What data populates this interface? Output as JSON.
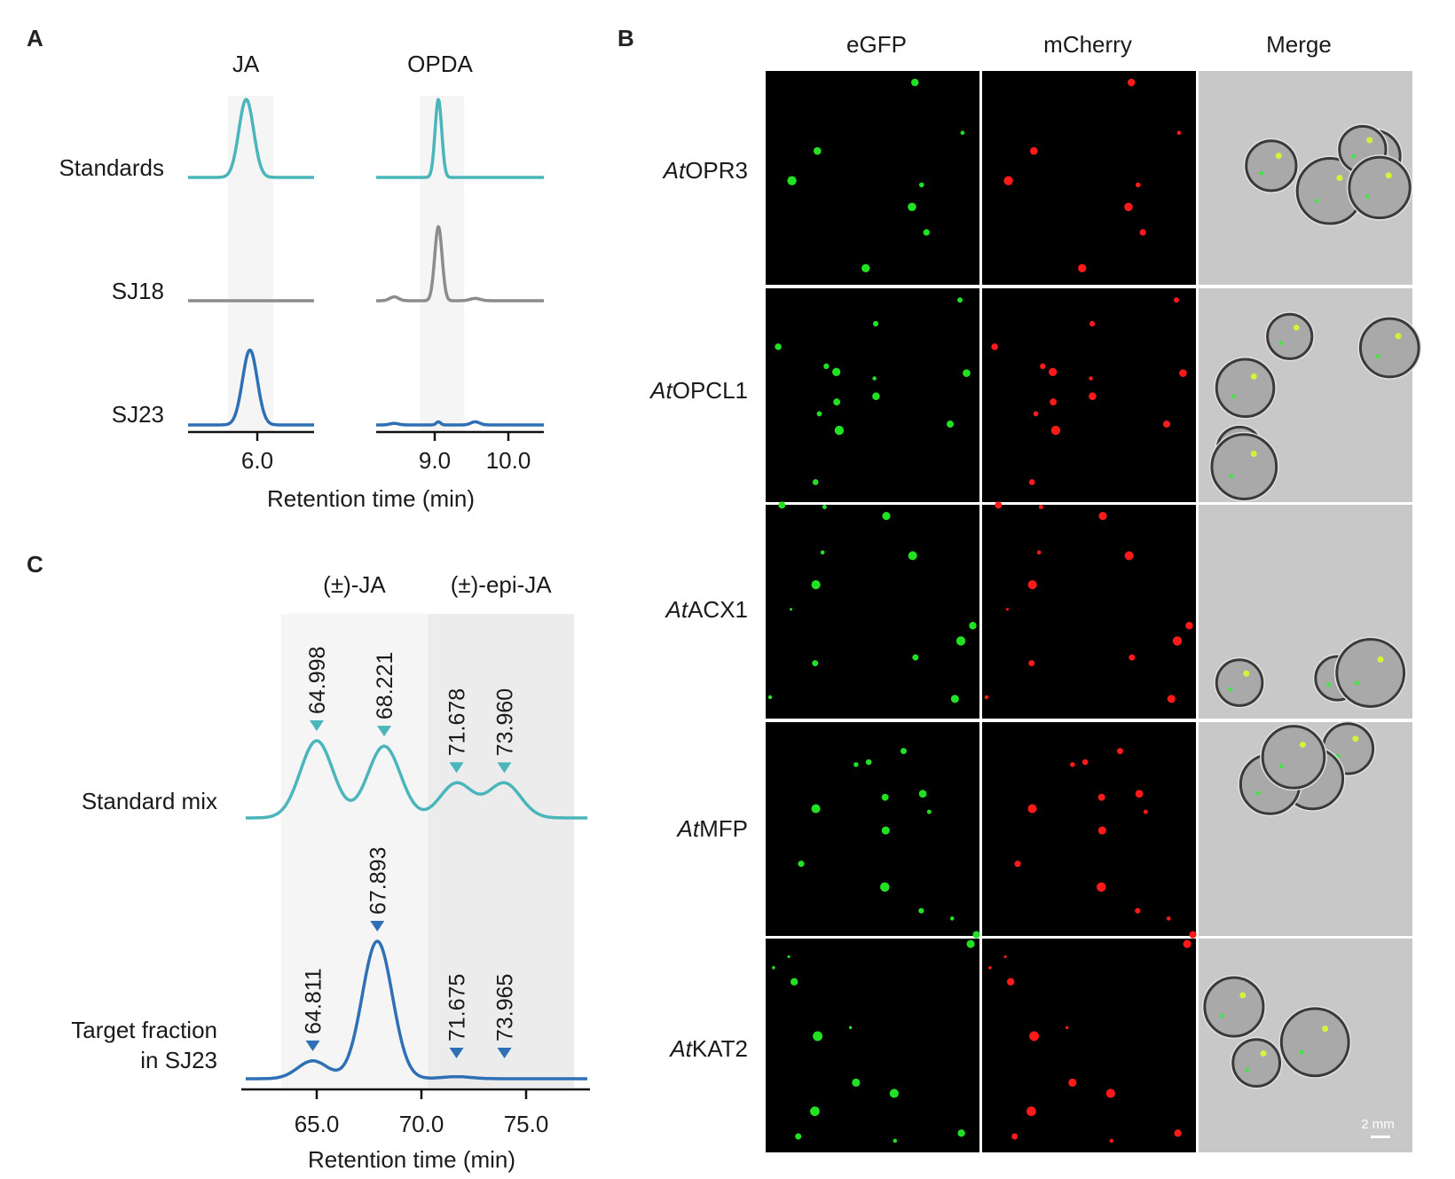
{
  "colors": {
    "standard": "#4ab5ba",
    "sj18": "#8c8c8c",
    "sj23": "#2f6fb5",
    "shade_light": "#f5f5f5",
    "shade_dark": "#ececec",
    "egfp": "#22e022",
    "mcherry": "#ff1a1a",
    "merge_bg": "#c8c8c8"
  },
  "panel_labels": {
    "a": "A",
    "b": "B",
    "c": "C"
  },
  "chart_data": [
    {
      "type": "line",
      "panel": "A",
      "xlabel": "Retention time (min)",
      "facets": [
        {
          "title": "JA",
          "xlim": [
            5.06,
            6.77
          ],
          "ticks": [
            "6.0"
          ],
          "tick_values": [
            6.0
          ],
          "highlight": [
            5.6,
            6.22
          ]
        },
        {
          "title": "OPDA",
          "xlim": [
            8.2,
            10.5
          ],
          "ticks": [
            "9.0",
            "10.0"
          ],
          "tick_values": [
            9.0,
            10.0
          ],
          "highlight": [
            8.8,
            9.4
          ]
        }
      ],
      "series": [
        {
          "name": "Standards",
          "color_key": "standard",
          "peaks": {
            "JA": [
              [
                5.85,
                1.0,
                0.1
              ]
            ],
            "OPDA": [
              [
                9.05,
                1.0,
                0.045
              ]
            ]
          }
        },
        {
          "name": "SJ18",
          "color_key": "sj18",
          "peaks": {
            "JA": [],
            "OPDA": [
              [
                9.05,
                0.95,
                0.05
              ],
              [
                8.45,
                0.05,
                0.06
              ],
              [
                9.55,
                0.03,
                0.07
              ]
            ]
          }
        },
        {
          "name": "SJ23",
          "color_key": "sj23",
          "peaks": {
            "JA": [
              [
                5.9,
                0.96,
                0.1
              ]
            ],
            "OPDA": [
              [
                8.45,
                0.02,
                0.06
              ],
              [
                9.05,
                0.04,
                0.03
              ],
              [
                9.55,
                0.04,
                0.06
              ]
            ]
          }
        }
      ]
    },
    {
      "type": "line",
      "panel": "C",
      "xlabel": "Retention time (min)",
      "xlim": [
        61.8,
        78.2
      ],
      "ticks": [
        "65.0",
        "70.0",
        "75.0"
      ],
      "tick_values": [
        65,
        70,
        75
      ],
      "regions": [
        {
          "label": "(±)-JA",
          "range": [
            63.3,
            70.3
          ]
        },
        {
          "label": "(±)-epi-JA",
          "range": [
            70.3,
            77.3
          ]
        }
      ],
      "series": [
        {
          "name": "Standard mix",
          "color_key": "standard",
          "peaks": [
            {
              "rt": "64.998",
              "x": 64.998,
              "height": 1.0
            },
            {
              "rt": "68.221",
              "x": 68.221,
              "height": 0.93
            },
            {
              "rt": "71.678",
              "x": 71.678,
              "height": 0.45
            },
            {
              "rt": "73.960",
              "x": 73.96,
              "height": 0.45
            }
          ]
        },
        {
          "name": "Target fraction in SJ23",
          "name_lines": [
            "Target fraction",
            "in SJ23"
          ],
          "color_key": "sj23",
          "peaks": [
            {
              "rt": "64.811",
              "x": 64.811,
              "height": 0.13
            },
            {
              "rt": "67.893",
              "x": 67.893,
              "height": 1.0
            },
            {
              "rt": "71.675",
              "x": 71.675,
              "height": 0.015
            },
            {
              "rt": "73.965",
              "x": 73.965,
              "height": 0.0
            }
          ]
        }
      ]
    }
  ],
  "microscopy": {
    "columns": [
      "eGFP",
      "mCherry",
      "Merge"
    ],
    "rows": [
      {
        "prefix": "At",
        "name": "OPR3"
      },
      {
        "prefix": "At",
        "name": "OPCL1"
      },
      {
        "prefix": "At",
        "name": "ACX1"
      },
      {
        "prefix": "At",
        "name": "MFP"
      },
      {
        "prefix": "At",
        "name": "KAT2"
      }
    ],
    "scale_bar": "2 mm"
  }
}
